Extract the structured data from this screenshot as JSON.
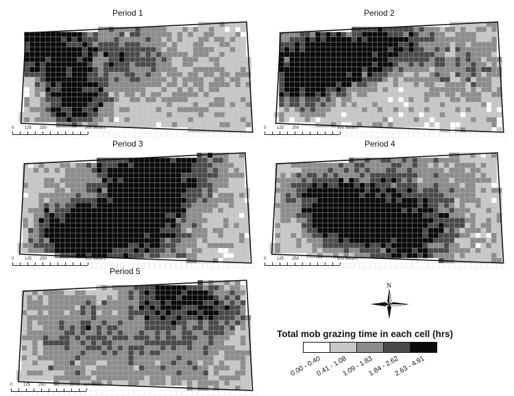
{
  "panels": [
    {
      "title": "Period 1",
      "scale_labels": [
        "0",
        "125",
        "250",
        "500 Meters"
      ],
      "pattern": "p1"
    },
    {
      "title": "Period 2",
      "scale_labels": [
        "0",
        "125",
        "250",
        "500 Meters"
      ],
      "pattern": "p2"
    },
    {
      "title": "Period 3",
      "scale_labels": [
        "0",
        "125",
        "250",
        "500 Meters"
      ],
      "pattern": "p3"
    },
    {
      "title": "Period 4",
      "scale_labels": [
        "0",
        "125",
        "250",
        "500 Meters"
      ],
      "pattern": "p4"
    },
    {
      "title": "Period 5",
      "scale_labels": [
        "0",
        "125",
        "250",
        "500 Meters"
      ],
      "pattern": "p5"
    }
  ],
  "north_arrow": {
    "label": "N"
  },
  "legend": {
    "title": "Total mob grazing time in each cell (hrs)",
    "classes": [
      {
        "label": "0.00 - 0.40",
        "color": "#ffffff"
      },
      {
        "label": "0.41 - 1.08",
        "color": "#c8c8c8"
      },
      {
        "label": "1.09 - 1.83",
        "color": "#8c8c8c"
      },
      {
        "label": "1.84 - 2.62",
        "color": "#4a4a4a"
      },
      {
        "label": "2.63 - 4.91",
        "color": "#0a0a0a"
      }
    ]
  }
}
